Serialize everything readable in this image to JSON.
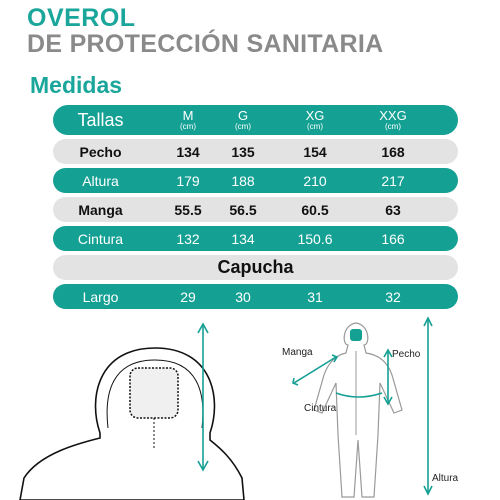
{
  "title": {
    "line1": "OVEROL",
    "line2": "DE PROTECCIÓN SANITARIA"
  },
  "subtitle": "Medidas",
  "table": {
    "header": {
      "label": "Tallas",
      "sizes": [
        {
          "size": "M",
          "unit": "(cm)"
        },
        {
          "size": "G",
          "unit": "(cm)"
        },
        {
          "size": "XG",
          "unit": "(cm)"
        },
        {
          "size": "XXG",
          "unit": "(cm)"
        }
      ]
    },
    "rows": [
      {
        "label": "Pecho",
        "values": [
          "134",
          "135",
          "154",
          "168"
        ]
      },
      {
        "label": "Altura",
        "values": [
          "179",
          "188",
          "210",
          "217"
        ]
      },
      {
        "label": "Manga",
        "values": [
          "55.5",
          "56.5",
          "60.5",
          "63"
        ]
      },
      {
        "label": "Cintura",
        "values": [
          "132",
          "134",
          "150.6",
          "166"
        ]
      }
    ],
    "section": "Capucha",
    "hood_row": {
      "label": "Largo",
      "values": [
        "29",
        "30",
        "31",
        "32"
      ]
    }
  },
  "diagram": {
    "labels": {
      "manga": "Manga",
      "pecho": "Pecho",
      "cintura": "Cintura",
      "altura": "Altura"
    }
  },
  "colors": {
    "teal": "#15a094",
    "gray": "#e3e3e3",
    "title_teal": "#1aa69a",
    "title_gray": "#8a8a8a"
  }
}
